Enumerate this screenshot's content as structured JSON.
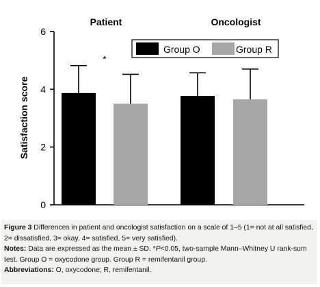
{
  "chart_data": {
    "type": "bar",
    "categories": [
      "Patient",
      "Oncologist"
    ],
    "series": [
      {
        "name": "Group O",
        "values": [
          3.87,
          3.77
        ],
        "sd": [
          0.95,
          0.8
        ],
        "color": "#000000"
      },
      {
        "name": "Group R",
        "values": [
          3.5,
          3.65
        ],
        "sd": [
          1.02,
          1.05
        ],
        "color": "#a6a6a6"
      }
    ],
    "ylabel": "Satisfaction score",
    "ylim": [
      0,
      6
    ],
    "yticks": [
      "0",
      "2",
      "4",
      "6"
    ],
    "annotation": "*",
    "legend_position": "top-right",
    "grid": false
  },
  "caption": {
    "figure_label": "Figure 3",
    "figure_text": " Differences in patient and oncologist satisfaction on a scale of 1–5 (1= not at all satisfied, 2= dissatisfied, 3= okay, 4= satisfied, 5= very satisfied).",
    "notes_label": "Notes:",
    "notes_text_1": " Data are expressed as the mean ± SD. *",
    "notes_p": "P",
    "notes_text_2": "<0.05, two-sample Mann–Whitney U rank-sum test. Group O = oxycodone group. Group R = remifentanil group.",
    "abbrev_label": "Abbreviations:",
    "abbrev_text": " O, oxycodone; R, remifentanil."
  }
}
